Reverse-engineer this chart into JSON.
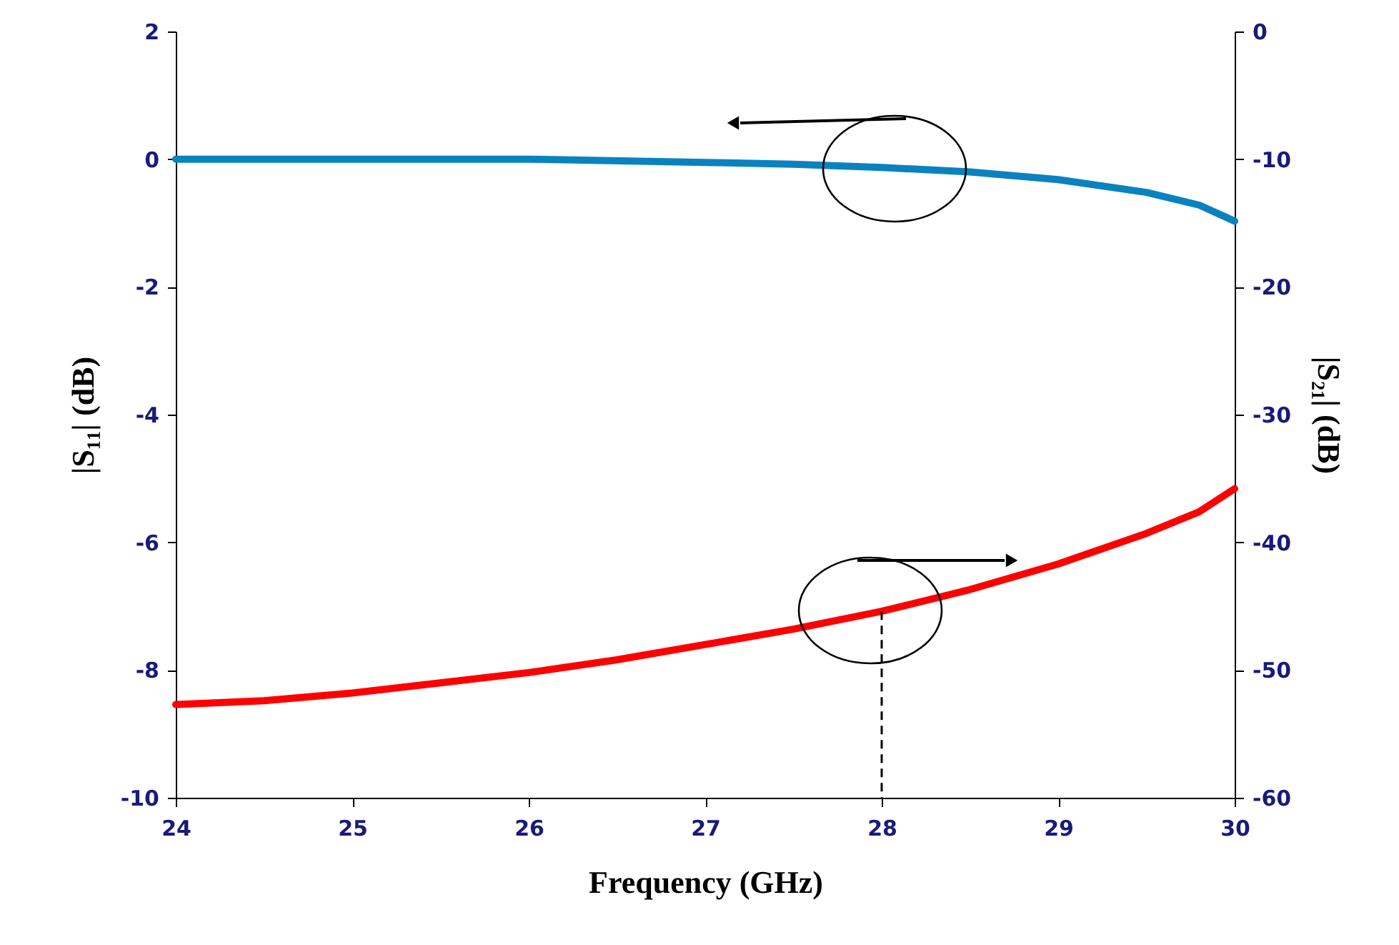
{
  "chart_data": {
    "type": "line",
    "xlabel": "Frequency (GHz)",
    "ylabel": "|S₁₁| (dB)",
    "y2label": "|S₂₁| (dB)",
    "xlim": [
      24,
      30
    ],
    "xticks": [
      24,
      25,
      26,
      27,
      28,
      29,
      30
    ],
    "ylim": [
      -10,
      2
    ],
    "yticks": [
      -10,
      -8,
      -6,
      -4,
      -2,
      0,
      2
    ],
    "y2lim": [
      -60,
      0
    ],
    "y2ticks": [
      -60,
      -50,
      -40,
      -30,
      -20,
      -10,
      0
    ],
    "grid": false,
    "marker": "none",
    "line_style": "solid",
    "series": [
      {
        "color": "#0a82c0",
        "x": [
          24,
          25,
          26,
          27,
          27.5,
          28,
          28.5,
          29,
          29.5,
          29.8,
          30
        ],
        "values": [
          0,
          0,
          0,
          -0.05,
          -0.08,
          -0.13,
          -0.2,
          -0.32,
          -0.52,
          -0.72,
          -0.97
        ]
      },
      {
        "color": "#ff0000",
        "axis": "y2",
        "x": [
          24,
          24.5,
          25,
          25.5,
          26,
          26.5,
          27,
          27.5,
          28,
          28.5,
          29,
          29.5,
          29.8,
          30
        ],
        "values": [
          -52.7,
          -52.4,
          -51.8,
          -51.0,
          -50.2,
          -49.2,
          -48.0,
          -46.8,
          -45.4,
          -43.7,
          -41.7,
          -39.3,
          -37.6,
          -35.8
        ]
      }
    ],
    "ref_lines": [
      {
        "axis": "x",
        "value": 28,
        "line_style": "dashed",
        "color": "#000000"
      }
    ]
  }
}
